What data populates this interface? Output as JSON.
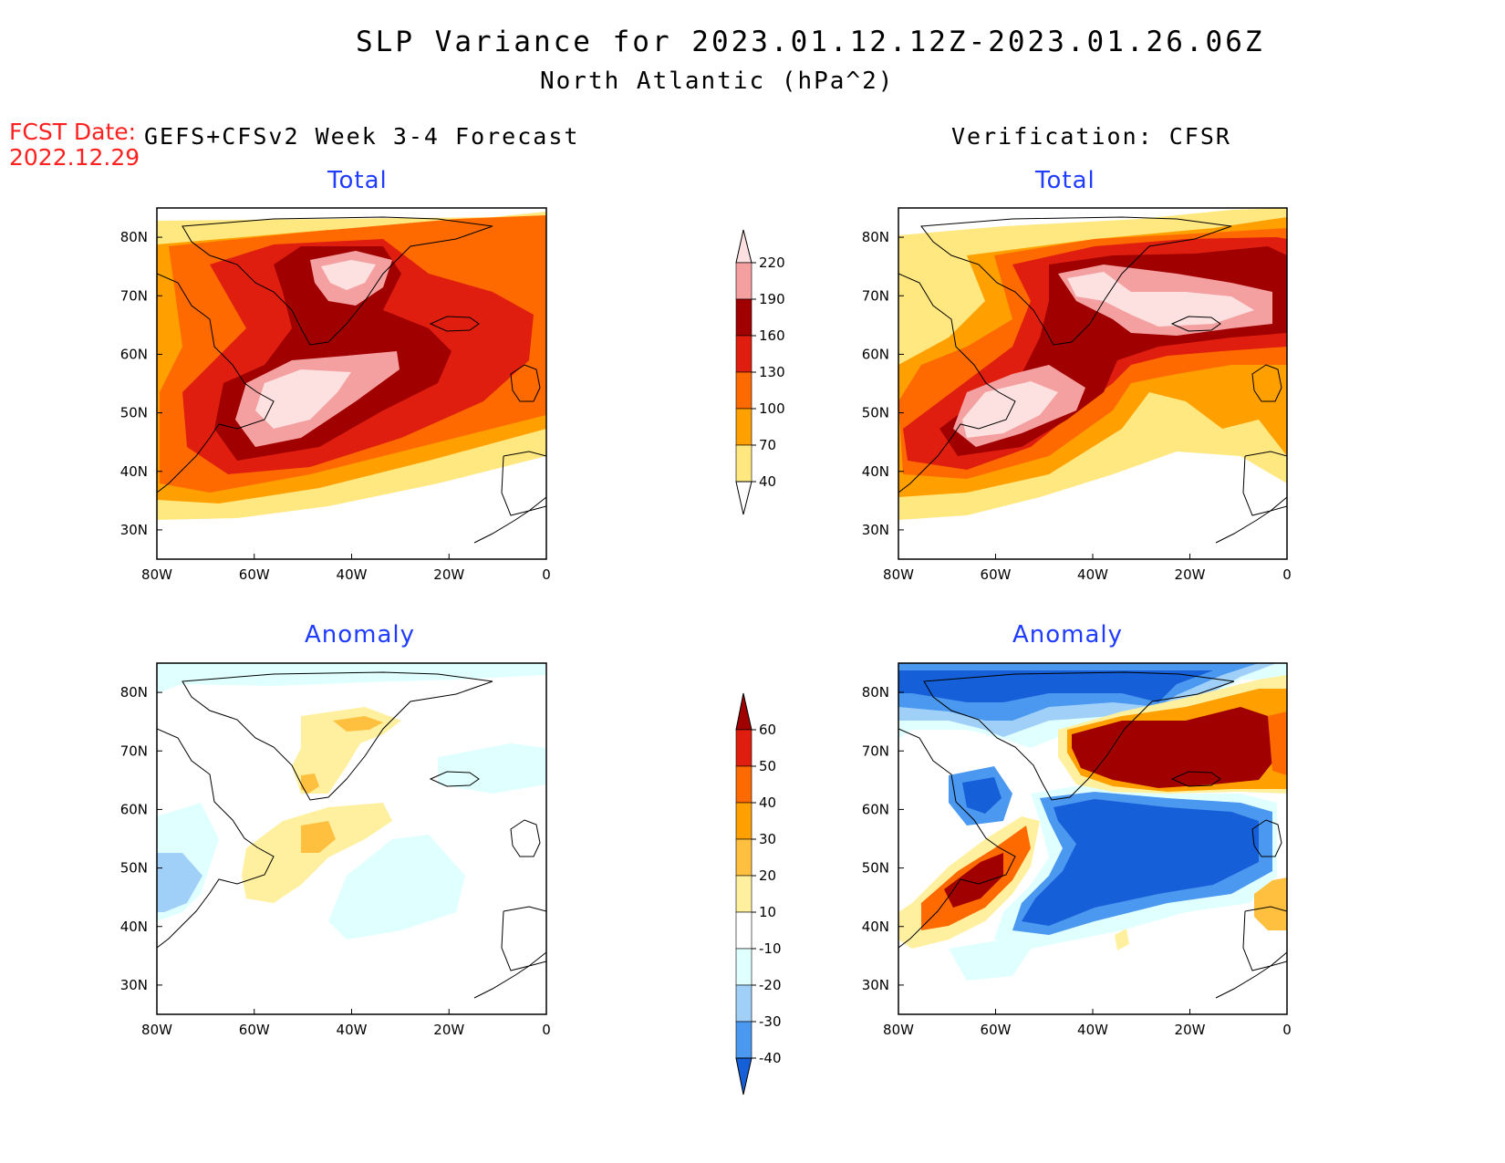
{
  "title_line1": "SLP Variance for 2023.01.12.12Z-2023.01.26.06Z",
  "title_line2": "North Atlantic (hPa^2)",
  "fcst_label": "FCST Date:",
  "fcst_date": "2022.12.29",
  "left_heading": "GEFS+CFSv2 Week 3-4 Forecast",
  "right_heading": "Verification: CFSR",
  "panels": {
    "fcst_total": {
      "title": "Total"
    },
    "verif_total": {
      "title": "Total"
    },
    "fcst_anom": {
      "title": "Anomaly"
    },
    "verif_anom": {
      "title": "Anomaly"
    }
  },
  "axes": {
    "lon_labels": [
      "80W",
      "60W",
      "40W",
      "20W",
      "0"
    ],
    "lat_labels": [
      "80N",
      "70N",
      "60N",
      "50N",
      "40N",
      "30N"
    ],
    "lon_range": [
      -80,
      0
    ],
    "lat_range": [
      25,
      85
    ]
  },
  "total_colorbar": {
    "labels": [
      "220",
      "190",
      "160",
      "130",
      "100",
      "70",
      "40"
    ],
    "colors": [
      "#fde0e0",
      "#f4a0a0",
      "#a00000",
      "#e01e10",
      "#ff6a00",
      "#ffa000",
      "#ffe880"
    ]
  },
  "anomaly_colorbar": {
    "labels": [
      "60",
      "50",
      "40",
      "30",
      "20",
      "10",
      "-10",
      "-20",
      "-30",
      "-40"
    ],
    "colors": [
      "#a00000",
      "#e01e10",
      "#ff6a00",
      "#ffa000",
      "#ffc040",
      "#fff0a0",
      "#ffffff",
      "#e0ffff",
      "#a0d0f8",
      "#4a98f0",
      "#1560d8"
    ]
  },
  "chart_data": [
    {
      "type": "heatmap",
      "name": "fcst_total",
      "title": "Total",
      "levels": [
        40,
        70,
        100,
        130,
        160,
        190,
        220
      ],
      "centers": [
        {
          "lon": -48,
          "lat": 52,
          "value": 220
        },
        {
          "lon": -43,
          "lat": 73,
          "value": 220
        },
        {
          "lon": -25,
          "lat": 62,
          "value": 150
        }
      ]
    },
    {
      "type": "heatmap",
      "name": "verif_total",
      "title": "Total",
      "levels": [
        40,
        70,
        100,
        130,
        160,
        190,
        220
      ],
      "centers": [
        {
          "lon": -62,
          "lat": 48,
          "value": 220
        },
        {
          "lon": -30,
          "lat": 68,
          "value": 220
        },
        {
          "lon": -15,
          "lat": 76,
          "value": 160
        }
      ]
    },
    {
      "type": "heatmap",
      "name": "fcst_anom",
      "title": "Anomaly",
      "levels": [
        -40,
        -30,
        -20,
        -10,
        10,
        20,
        30,
        40,
        50,
        60
      ],
      "centers": [
        {
          "lon": -45,
          "lat": 55,
          "value": 30
        },
        {
          "lon": -40,
          "lat": 74,
          "value": 30
        },
        {
          "lon": -75,
          "lat": 47,
          "value": -20
        }
      ]
    },
    {
      "type": "heatmap",
      "name": "verif_anom",
      "title": "Anomaly",
      "levels": [
        -40,
        -30,
        -20,
        -10,
        10,
        20,
        30,
        40,
        50,
        60
      ],
      "centers": [
        {
          "lon": -63,
          "lat": 48,
          "value": 60
        },
        {
          "lon": -20,
          "lat": 70,
          "value": 60
        },
        {
          "lon": -30,
          "lat": 55,
          "value": -40
        },
        {
          "lon": -55,
          "lat": 82,
          "value": -40
        }
      ]
    }
  ]
}
